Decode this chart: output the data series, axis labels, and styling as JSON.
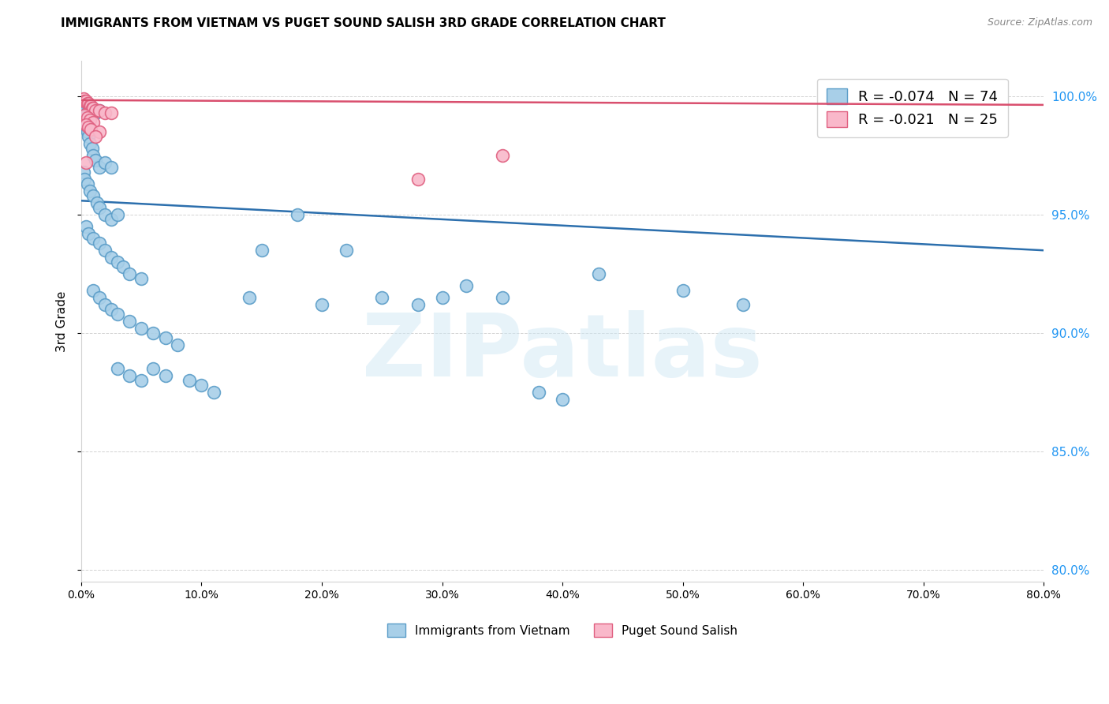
{
  "title": "IMMIGRANTS FROM VIETNAM VS PUGET SOUND SALISH 3RD GRADE CORRELATION CHART",
  "source": "Source: ZipAtlas.com",
  "ylabel": "3rd Grade",
  "x_tick_labels": [
    "0.0%",
    "10.0%",
    "20.0%",
    "30.0%",
    "40.0%",
    "50.0%",
    "60.0%",
    "70.0%",
    "80.0%"
  ],
  "x_tick_vals": [
    0,
    10,
    20,
    30,
    40,
    50,
    60,
    70,
    80
  ],
  "y_tick_labels": [
    "80.0%",
    "85.0%",
    "90.0%",
    "95.0%",
    "100.0%"
  ],
  "y_tick_vals": [
    80,
    85,
    90,
    95,
    100
  ],
  "xlim": [
    0,
    80
  ],
  "ylim": [
    79.5,
    101.5
  ],
  "blue_color": "#a8cfe8",
  "blue_edge_color": "#5b9dc8",
  "pink_color": "#f9b8ca",
  "pink_edge_color": "#e06080",
  "blue_line_color": "#2c6fad",
  "pink_line_color": "#d94f6e",
  "legend_blue_label": "R = -0.074   N = 74",
  "legend_pink_label": "R = -0.021   N = 25",
  "legend_label_blue": "Immigrants from Vietnam",
  "legend_label_pink": "Puget Sound Salish",
  "watermark": "ZIPatlas",
  "blue_line_x0": 0,
  "blue_line_y0": 95.6,
  "blue_line_x1": 80,
  "blue_line_y1": 93.5,
  "pink_line_x0": 0,
  "pink_line_y0": 99.85,
  "pink_line_x1": 80,
  "pink_line_y1": 99.65,
  "blue_points": [
    [
      0.2,
      99.5
    ],
    [
      0.3,
      99.3
    ],
    [
      0.4,
      99.4
    ],
    [
      0.5,
      99.3
    ],
    [
      0.6,
      99.4
    ],
    [
      0.7,
      99.4
    ],
    [
      0.8,
      99.3
    ],
    [
      1.0,
      99.4
    ],
    [
      1.2,
      99.3
    ],
    [
      1.5,
      99.4
    ],
    [
      0.3,
      98.8
    ],
    [
      0.5,
      98.5
    ],
    [
      0.6,
      98.3
    ],
    [
      0.7,
      98.0
    ],
    [
      0.9,
      97.8
    ],
    [
      1.0,
      97.5
    ],
    [
      1.2,
      97.3
    ],
    [
      1.5,
      97.0
    ],
    [
      2.0,
      97.2
    ],
    [
      2.5,
      97.0
    ],
    [
      0.2,
      96.8
    ],
    [
      0.3,
      96.5
    ],
    [
      0.5,
      96.3
    ],
    [
      0.7,
      96.0
    ],
    [
      1.0,
      95.8
    ],
    [
      1.3,
      95.5
    ],
    [
      1.5,
      95.3
    ],
    [
      2.0,
      95.0
    ],
    [
      2.5,
      94.8
    ],
    [
      3.0,
      95.0
    ],
    [
      0.4,
      94.5
    ],
    [
      0.6,
      94.2
    ],
    [
      1.0,
      94.0
    ],
    [
      1.5,
      93.8
    ],
    [
      2.0,
      93.5
    ],
    [
      2.5,
      93.2
    ],
    [
      3.0,
      93.0
    ],
    [
      3.5,
      92.8
    ],
    [
      4.0,
      92.5
    ],
    [
      5.0,
      92.3
    ],
    [
      1.0,
      91.8
    ],
    [
      1.5,
      91.5
    ],
    [
      2.0,
      91.2
    ],
    [
      2.5,
      91.0
    ],
    [
      3.0,
      90.8
    ],
    [
      4.0,
      90.5
    ],
    [
      5.0,
      90.2
    ],
    [
      6.0,
      90.0
    ],
    [
      7.0,
      89.8
    ],
    [
      8.0,
      89.5
    ],
    [
      3.0,
      88.5
    ],
    [
      4.0,
      88.2
    ],
    [
      5.0,
      88.0
    ],
    [
      6.0,
      88.5
    ],
    [
      7.0,
      88.2
    ],
    [
      9.0,
      88.0
    ],
    [
      10.0,
      87.8
    ],
    [
      11.0,
      87.5
    ],
    [
      14.0,
      91.5
    ],
    [
      15.0,
      93.5
    ],
    [
      18.0,
      95.0
    ],
    [
      20.0,
      91.2
    ],
    [
      22.0,
      93.5
    ],
    [
      25.0,
      91.5
    ],
    [
      28.0,
      91.2
    ],
    [
      30.0,
      91.5
    ],
    [
      32.0,
      92.0
    ],
    [
      35.0,
      91.5
    ],
    [
      38.0,
      87.5
    ],
    [
      40.0,
      87.2
    ],
    [
      43.0,
      92.5
    ],
    [
      50.0,
      91.8
    ],
    [
      55.0,
      91.2
    ],
    [
      70.0,
      99.5
    ]
  ],
  "pink_points": [
    [
      0.2,
      99.9
    ],
    [
      0.3,
      99.8
    ],
    [
      0.4,
      99.8
    ],
    [
      0.5,
      99.7
    ],
    [
      0.6,
      99.7
    ],
    [
      0.7,
      99.6
    ],
    [
      0.8,
      99.6
    ],
    [
      0.9,
      99.5
    ],
    [
      1.0,
      99.5
    ],
    [
      1.2,
      99.4
    ],
    [
      1.5,
      99.4
    ],
    [
      2.0,
      99.3
    ],
    [
      2.5,
      99.3
    ],
    [
      0.3,
      99.2
    ],
    [
      0.5,
      99.1
    ],
    [
      0.7,
      99.0
    ],
    [
      1.0,
      98.9
    ],
    [
      0.4,
      98.8
    ],
    [
      0.6,
      98.7
    ],
    [
      0.8,
      98.6
    ],
    [
      1.5,
      98.5
    ],
    [
      1.2,
      98.3
    ],
    [
      0.4,
      97.2
    ],
    [
      35.0,
      97.5
    ],
    [
      28.0,
      96.5
    ]
  ]
}
